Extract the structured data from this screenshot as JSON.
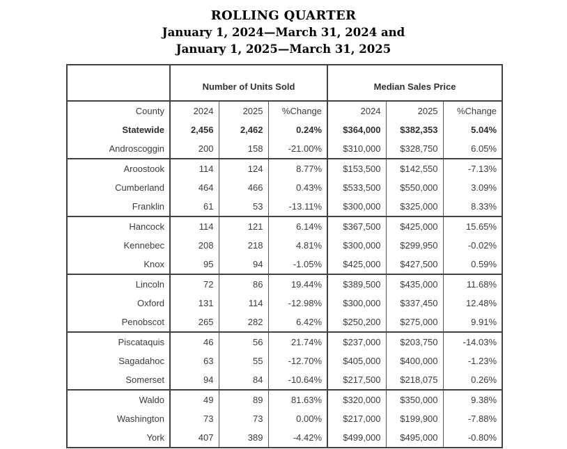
{
  "title": {
    "line1": "ROLLING QUARTER",
    "line2": "January 1, 2024—March 31, 2024 and",
    "line3": "January 1, 2025—March 31, 2025"
  },
  "colors": {
    "background": "#ffffff",
    "title_text": "#000000",
    "table_text": "#3b3b3b",
    "border_strong": "#404040",
    "border_light": "#555555"
  },
  "table": {
    "group_headers": [
      "Number of Units Sold",
      "Median Sales Price"
    ],
    "column_headers": [
      "County",
      "2024",
      "2025",
      "%Change",
      "2024",
      "2025",
      "%Change"
    ],
    "rows": [
      {
        "bold": true,
        "section_start": false,
        "cells": [
          "Statewide",
          "2,456",
          "2,462",
          "0.24%",
          "$364,000",
          "$382,353",
          "5.04%"
        ]
      },
      {
        "bold": false,
        "section_start": false,
        "cells": [
          "Androscoggin",
          "200",
          "158",
          "-21.00%",
          "$310,000",
          "$328,750",
          "6.05%"
        ]
      },
      {
        "bold": false,
        "section_start": true,
        "cells": [
          "Aroostook",
          "114",
          "124",
          "8.77%",
          "$153,500",
          "$142,550",
          "-7.13%"
        ]
      },
      {
        "bold": false,
        "section_start": false,
        "cells": [
          "Cumberland",
          "464",
          "466",
          "0.43%",
          "$533,500",
          "$550,000",
          "3.09%"
        ]
      },
      {
        "bold": false,
        "section_start": false,
        "cells": [
          "Franklin",
          "61",
          "53",
          "-13.11%",
          "$300,000",
          "$325,000",
          "8.33%"
        ]
      },
      {
        "bold": false,
        "section_start": true,
        "cells": [
          "Hancock",
          "114",
          "121",
          "6.14%",
          "$367,500",
          "$425,000",
          "15.65%"
        ]
      },
      {
        "bold": false,
        "section_start": false,
        "cells": [
          "Kennebec",
          "208",
          "218",
          "4.81%",
          "$300,000",
          "$299,950",
          "-0.02%"
        ]
      },
      {
        "bold": false,
        "section_start": false,
        "cells": [
          "Knox",
          "95",
          "94",
          "-1.05%",
          "$425,000",
          "$427,500",
          "0.59%"
        ]
      },
      {
        "bold": false,
        "section_start": true,
        "cells": [
          "Lincoln",
          "72",
          "86",
          "19.44%",
          "$389,500",
          "$435,000",
          "11.68%"
        ]
      },
      {
        "bold": false,
        "section_start": false,
        "cells": [
          "Oxford",
          "131",
          "114",
          "-12.98%",
          "$300,000",
          "$337,450",
          "12.48%"
        ]
      },
      {
        "bold": false,
        "section_start": false,
        "cells": [
          "Penobscot",
          "265",
          "282",
          "6.42%",
          "$250,200",
          "$275,000",
          "9.91%"
        ]
      },
      {
        "bold": false,
        "section_start": true,
        "cells": [
          "Piscataquis",
          "46",
          "56",
          "21.74%",
          "$237,000",
          "$203,750",
          "-14.03%"
        ]
      },
      {
        "bold": false,
        "section_start": false,
        "cells": [
          "Sagadahoc",
          "63",
          "55",
          "-12.70%",
          "$405,000",
          "$400,000",
          "-1.23%"
        ]
      },
      {
        "bold": false,
        "section_start": false,
        "cells": [
          "Somerset",
          "94",
          "84",
          "-10.64%",
          "$217,500",
          "$218,075",
          "0.26%"
        ]
      },
      {
        "bold": false,
        "section_start": true,
        "cells": [
          "Waldo",
          "49",
          "89",
          "81.63%",
          "$320,000",
          "$350,000",
          "9.38%"
        ]
      },
      {
        "bold": false,
        "section_start": false,
        "cells": [
          "Washington",
          "73",
          "73",
          "0.00%",
          "$217,000",
          "$199,900",
          "-7.88%"
        ]
      },
      {
        "bold": false,
        "section_start": false,
        "cells": [
          "York",
          "407",
          "389",
          "-4.42%",
          "$499,000",
          "$495,000",
          "-0.80%"
        ]
      }
    ]
  }
}
